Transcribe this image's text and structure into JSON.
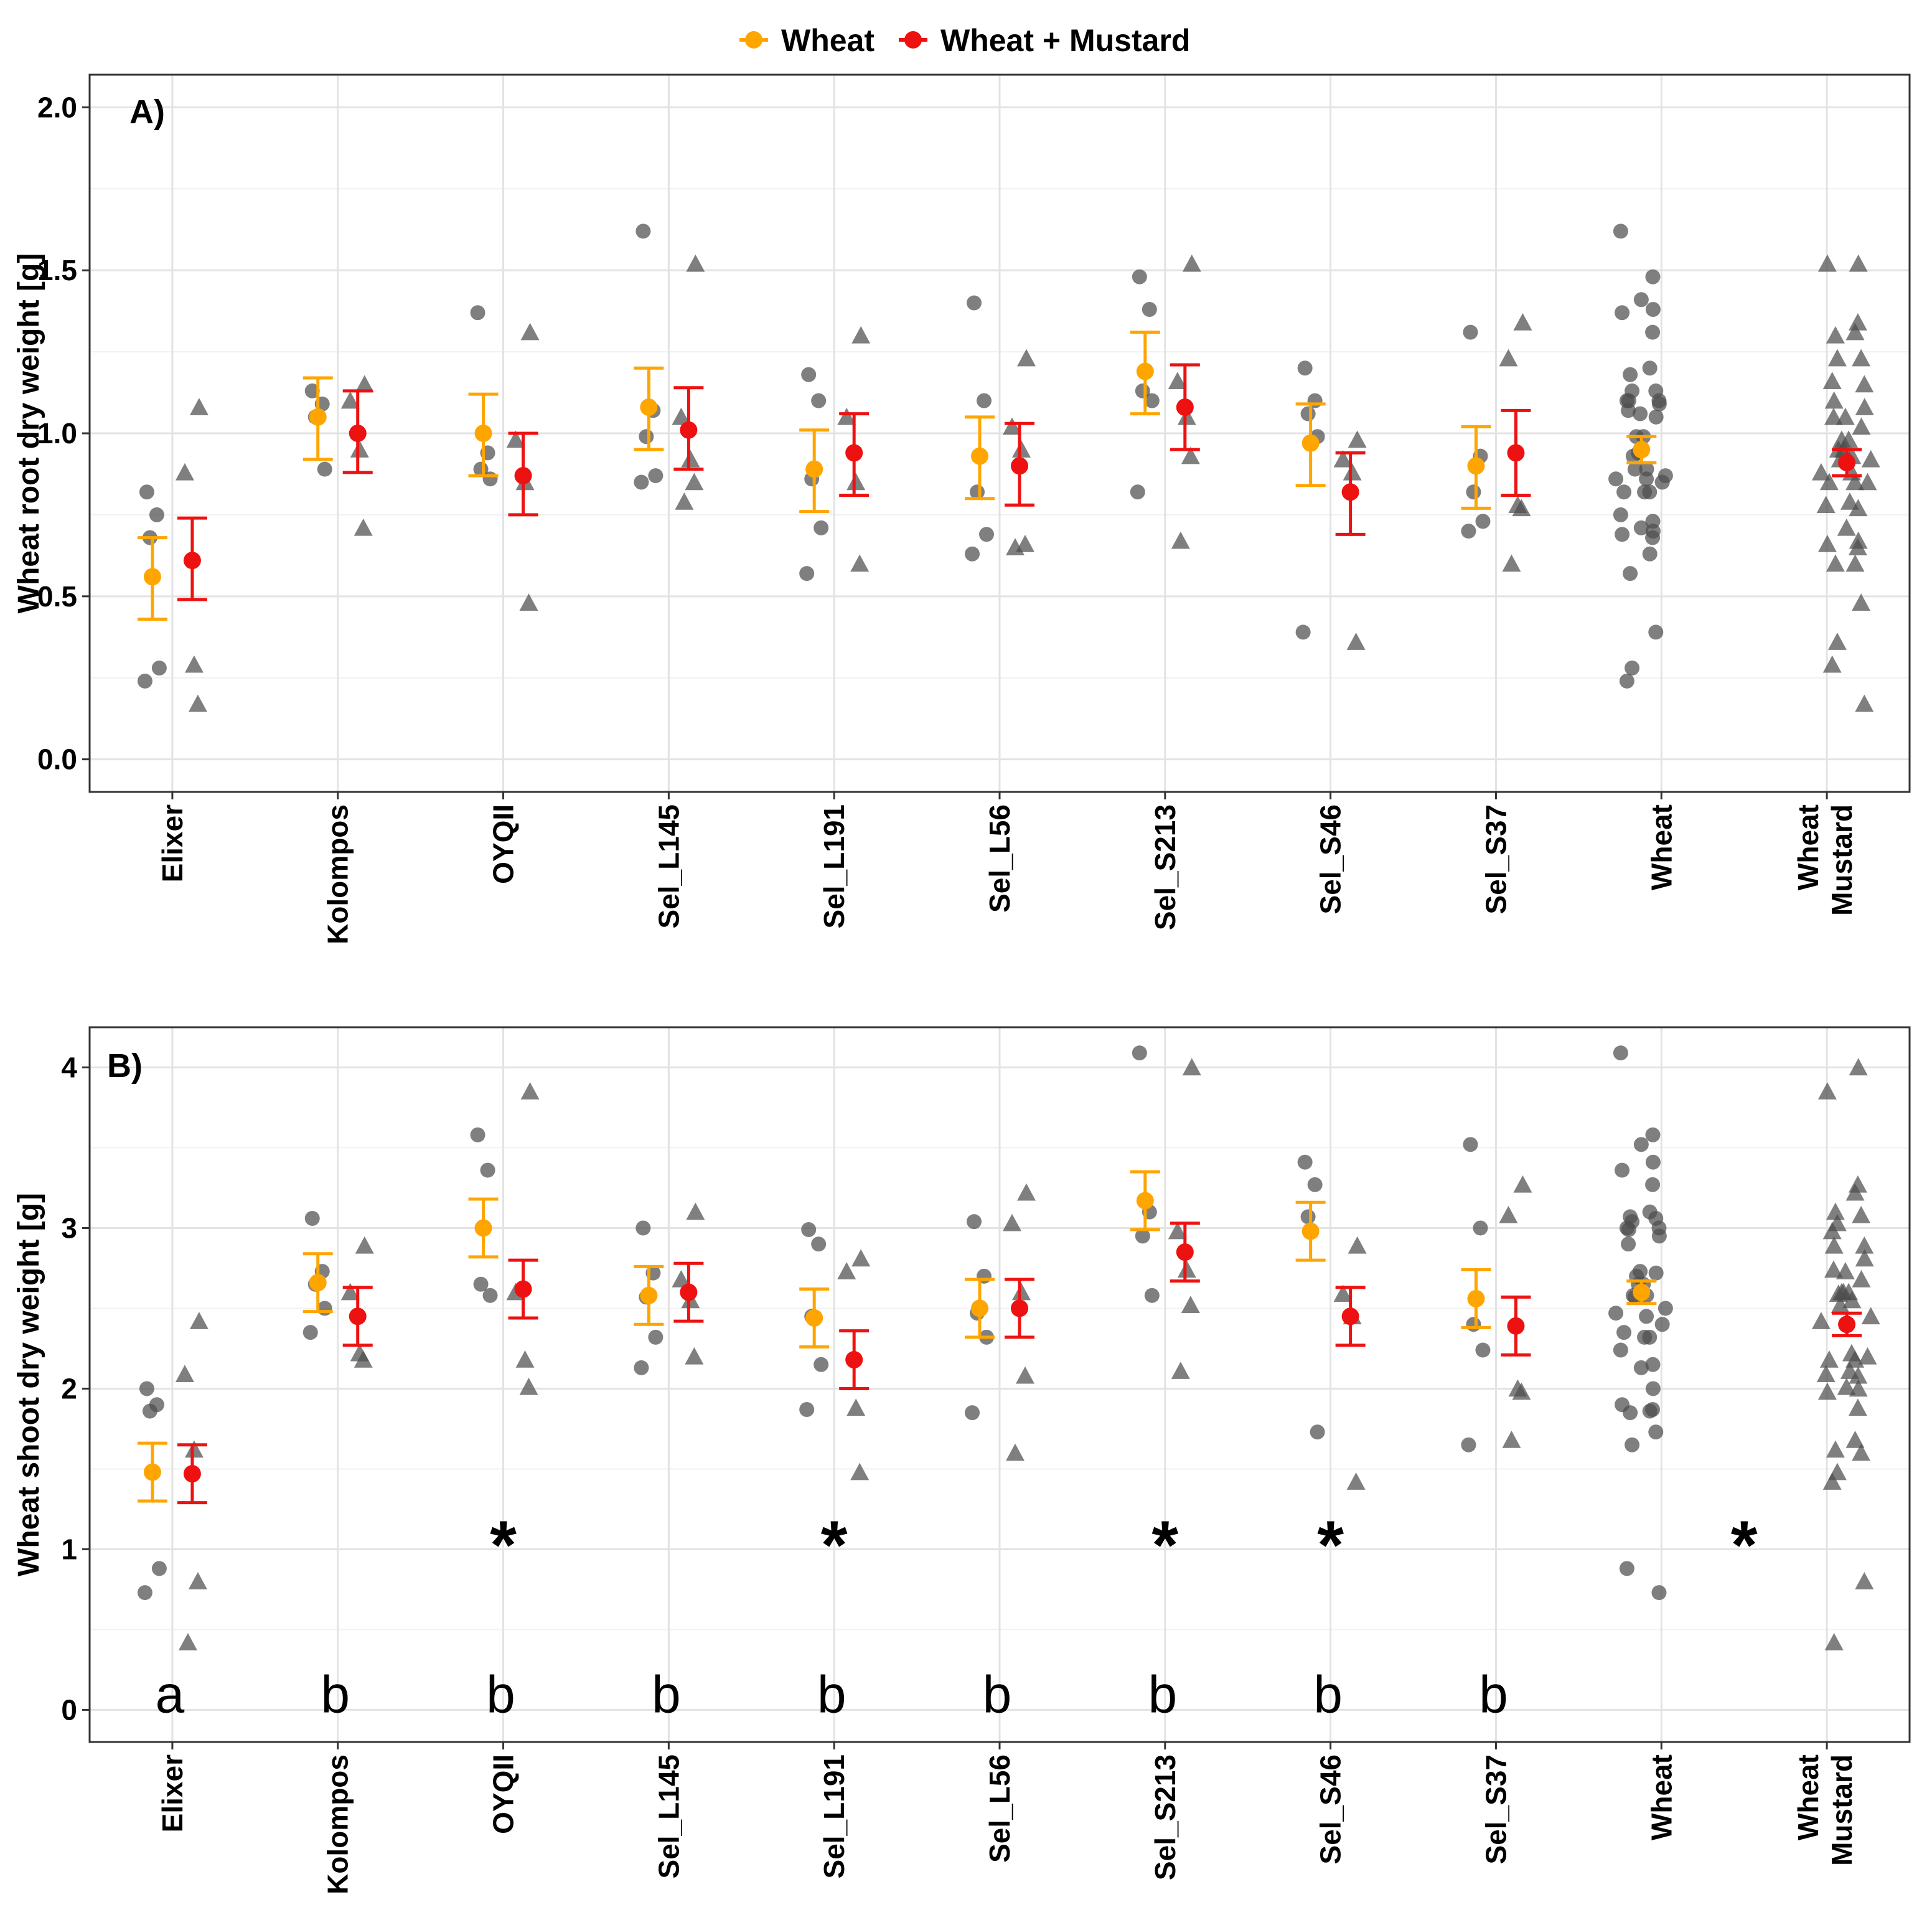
{
  "legend": {
    "items": [
      {
        "label": "Wheat",
        "color": "#FFA500"
      },
      {
        "label": "Wheat + Mustard",
        "color": "#EE1111"
      }
    ]
  },
  "colors": {
    "wheat": "#FFA500",
    "mustard": "#EE1111",
    "raw_points": "#4d4d4d",
    "grid": "#e6e6e6"
  },
  "chart_data": [
    {
      "type": "scatter",
      "panel": "A)",
      "ylabel": "Wheat root dry weight  [g]",
      "ylim": [
        -0.1,
        2.1
      ],
      "yticks": [
        "0.0",
        "0.5",
        "1.0",
        "1.5",
        "2.0"
      ],
      "categories": [
        "Elixer",
        "Kolompos",
        "OYQII",
        "Sel_L145",
        "Sel_L191",
        "Sel_L56",
        "Sel_S213",
        "Sel_S46",
        "Sel_S37",
        "Wheat",
        "Wheat\nMustard"
      ],
      "series": [
        {
          "name": "Wheat",
          "mean": [
            0.56,
            1.05,
            1.0,
            1.08,
            0.89,
            0.93,
            1.19,
            0.97,
            0.9,
            0.95,
            null
          ],
          "lower": [
            0.43,
            0.92,
            0.87,
            0.95,
            0.76,
            0.8,
            1.06,
            0.84,
            0.77,
            0.91,
            null
          ],
          "upper": [
            0.68,
            1.17,
            1.12,
            1.2,
            1.01,
            1.05,
            1.31,
            1.09,
            1.02,
            0.99,
            null
          ]
        },
        {
          "name": "Wheat + Mustard",
          "mean": [
            0.61,
            1.0,
            0.87,
            1.01,
            0.94,
            0.9,
            1.08,
            0.82,
            0.94,
            null,
            0.91
          ],
          "lower": [
            0.49,
            0.88,
            0.75,
            0.89,
            0.81,
            0.78,
            0.95,
            0.69,
            0.81,
            null,
            0.87
          ],
          "upper": [
            0.74,
            1.13,
            1.0,
            1.14,
            1.06,
            1.03,
            1.21,
            0.94,
            1.07,
            null,
            0.95
          ]
        }
      ],
      "raw_wheat": [
        [
          0.82,
          0.75,
          0.68,
          0.28,
          0.24
        ],
        [
          1.13,
          1.09,
          1.05,
          0.89
        ],
        [
          1.37,
          0.94,
          0.89,
          0.86
        ],
        [
          1.62,
          1.07,
          0.99,
          0.87,
          0.85
        ],
        [
          1.18,
          1.1,
          0.86,
          0.71,
          0.57
        ],
        [
          1.4,
          1.1,
          0.82,
          0.69,
          0.63
        ],
        [
          1.48,
          1.38,
          1.13,
          1.1,
          0.82
        ],
        [
          1.2,
          1.1,
          1.06,
          0.99,
          0.39
        ],
        [
          1.31,
          0.93,
          0.82,
          0.73,
          0.7
        ],
        [
          1.62,
          1.48,
          1.41,
          1.38,
          1.37,
          1.31,
          1.2,
          1.18,
          1.13,
          1.13,
          1.1,
          1.1,
          1.1,
          1.09,
          1.07,
          1.06,
          1.05,
          0.99,
          0.99,
          0.94,
          0.93,
          0.89,
          0.89,
          0.87,
          0.86,
          0.86,
          0.85,
          0.82,
          0.82,
          0.82,
          0.75,
          0.73,
          0.71,
          0.7,
          0.69,
          0.68,
          0.63,
          0.57,
          0.39,
          0.28,
          0.24
        ]
      ],
      "raw_mustard": [
        [
          1.08,
          0.88,
          0.29,
          0.17
        ],
        [
          1.15,
          1.1,
          0.95,
          0.71
        ],
        [
          1.31,
          0.98,
          0.85,
          0.48
        ],
        [
          1.52,
          1.05,
          0.92,
          0.85,
          0.79
        ],
        [
          1.3,
          1.05,
          0.85,
          0.6
        ],
        [
          1.23,
          1.02,
          0.95,
          0.66,
          0.65
        ],
        [
          1.52,
          1.16,
          1.05,
          0.93,
          0.67
        ],
        [
          0.98,
          0.92,
          0.88,
          0.36
        ],
        [
          1.34,
          1.23,
          0.78,
          0.77,
          0.6
        ],
        [],
        [
          1.52,
          1.52,
          1.34,
          1.31,
          1.3,
          1.23,
          1.23,
          1.16,
          1.15,
          1.1,
          1.08,
          1.05,
          1.05,
          1.02,
          0.98,
          0.98,
          0.95,
          0.95,
          0.93,
          0.92,
          0.92,
          0.88,
          0.88,
          0.85,
          0.85,
          0.85,
          0.79,
          0.78,
          0.77,
          0.71,
          0.67,
          0.66,
          0.65,
          0.6,
          0.6,
          0.48,
          0.36,
          0.29,
          0.17
        ]
      ]
    },
    {
      "type": "scatter",
      "panel": "B)",
      "ylabel": "Wheat shoot dry weight  [g]",
      "ylim": [
        -0.2,
        4.25
      ],
      "yticks": [
        "0",
        "1",
        "2",
        "3",
        "4"
      ],
      "categories": [
        "Elixer",
        "Kolompos",
        "OYQII",
        "Sel_L145",
        "Sel_L191",
        "Sel_L56",
        "Sel_S213",
        "Sel_S46",
        "Sel_S37",
        "Wheat",
        "Wheat\nMustard"
      ],
      "series": [
        {
          "name": "Wheat",
          "mean": [
            1.48,
            2.66,
            3.0,
            2.58,
            2.44,
            2.5,
            3.17,
            2.98,
            2.56,
            2.6,
            null
          ],
          "lower": [
            1.3,
            2.48,
            2.82,
            2.4,
            2.26,
            2.32,
            2.99,
            2.8,
            2.38,
            2.53,
            null
          ],
          "upper": [
            1.66,
            2.84,
            3.18,
            2.76,
            2.62,
            2.68,
            3.35,
            3.16,
            2.74,
            2.67,
            null
          ]
        },
        {
          "name": "Wheat + Mustard",
          "mean": [
            1.47,
            2.45,
            2.62,
            2.6,
            2.18,
            2.5,
            2.85,
            2.45,
            2.39,
            null,
            2.4
          ],
          "lower": [
            1.29,
            2.27,
            2.44,
            2.42,
            2.0,
            2.32,
            2.67,
            2.27,
            2.21,
            null,
            2.33
          ],
          "upper": [
            1.65,
            2.63,
            2.8,
            2.78,
            2.36,
            2.68,
            3.03,
            2.63,
            2.57,
            null,
            2.47
          ]
        }
      ],
      "raw_wheat": [
        [
          2.0,
          1.9,
          1.86,
          0.88,
          0.73
        ],
        [
          3.06,
          2.73,
          2.65,
          2.5,
          2.35
        ],
        [
          3.58,
          3.36,
          2.65,
          2.58
        ],
        [
          3.0,
          2.72,
          2.57,
          2.32,
          2.13
        ],
        [
          2.99,
          2.9,
          2.45,
          2.15,
          1.87
        ],
        [
          3.04,
          2.7,
          2.47,
          2.32,
          1.85
        ],
        [
          4.09,
          3.1,
          2.95,
          2.58
        ],
        [
          3.41,
          3.27,
          3.07,
          1.73
        ],
        [
          3.52,
          3.0,
          2.4,
          2.24,
          1.65
        ],
        [
          4.09,
          3.58,
          3.52,
          3.41,
          3.36,
          3.27,
          3.1,
          3.07,
          3.06,
          3.04,
          3.0,
          3.0,
          2.99,
          2.95,
          2.9,
          2.73,
          2.72,
          2.7,
          2.65,
          2.65,
          2.58,
          2.58,
          2.57,
          2.5,
          2.47,
          2.45,
          2.4,
          2.35,
          2.32,
          2.32,
          2.24,
          2.15,
          2.13,
          2.0,
          1.9,
          1.87,
          1.86,
          1.85,
          1.73,
          1.65,
          0.88,
          0.73
        ]
      ],
      "raw_mustard": [
        [
          2.42,
          2.09,
          1.62,
          0.8,
          0.42
        ],
        [
          2.89,
          2.6,
          2.22,
          2.18
        ],
        [
          3.85,
          2.6,
          2.18,
          2.01
        ],
        [
          3.1,
          2.68,
          2.55,
          2.2
        ],
        [
          2.81,
          2.73,
          1.88,
          1.48
        ],
        [
          3.22,
          3.03,
          2.6,
          2.08,
          1.6
        ],
        [
          4.0,
          2.98,
          2.74,
          2.52,
          2.11
        ],
        [
          2.89,
          2.59,
          2.45,
          1.42
        ],
        [
          3.27,
          3.08,
          2.0,
          1.98,
          1.68
        ],
        [],
        [
          4.0,
          3.85,
          3.27,
          3.22,
          3.1,
          3.08,
          3.03,
          2.98,
          2.89,
          2.89,
          2.81,
          2.74,
          2.73,
          2.68,
          2.6,
          2.6,
          2.6,
          2.59,
          2.55,
          2.52,
          2.45,
          2.42,
          2.22,
          2.2,
          2.18,
          2.18,
          2.11,
          2.09,
          2.08,
          2.01,
          2.0,
          1.98,
          1.88,
          1.68,
          1.62,
          1.6,
          1.48,
          1.42,
          0.8,
          0.42
        ]
      ],
      "significance": [
        {
          "category": "OYQII",
          "text": "*",
          "y": 1.05
        },
        {
          "category": "Sel_L191",
          "text": "*",
          "y": 1.05
        },
        {
          "category": "Sel_S213",
          "text": "*",
          "y": 1.05
        },
        {
          "category": "Sel_S46",
          "text": "*",
          "y": 1.05
        },
        {
          "category_between": [
            "Wheat",
            "Wheat\nMustard"
          ],
          "text": "*",
          "y": 1.05
        }
      ],
      "letters": {
        "y": 0.1,
        "labels": [
          "a",
          "b",
          "b",
          "b",
          "b",
          "b",
          "b",
          "b",
          "b"
        ]
      }
    }
  ]
}
